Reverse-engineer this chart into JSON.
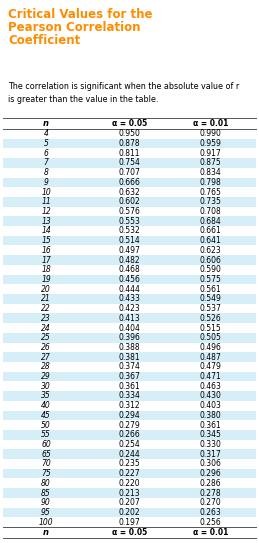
{
  "title_lines": [
    "Critical Values for the",
    "Pearson Correlation",
    "Coefficient"
  ],
  "title_color": "#FF8C00",
  "subtitle": "The correlation is significant when the absolute value of r\nis greater than the value in the table.",
  "col_headers": [
    "n",
    "α = 0.05",
    "α = 0.01"
  ],
  "rows": [
    [
      4,
      0.95,
      0.99
    ],
    [
      5,
      0.878,
      0.959
    ],
    [
      6,
      0.811,
      0.917
    ],
    [
      7,
      0.754,
      0.875
    ],
    [
      8,
      0.707,
      0.834
    ],
    [
      9,
      0.666,
      0.798
    ],
    [
      10,
      0.632,
      0.765
    ],
    [
      11,
      0.602,
      0.735
    ],
    [
      12,
      0.576,
      0.708
    ],
    [
      13,
      0.553,
      0.684
    ],
    [
      14,
      0.532,
      0.661
    ],
    [
      15,
      0.514,
      0.641
    ],
    [
      16,
      0.497,
      0.623
    ],
    [
      17,
      0.482,
      0.606
    ],
    [
      18,
      0.468,
      0.59
    ],
    [
      19,
      0.456,
      0.575
    ],
    [
      20,
      0.444,
      0.561
    ],
    [
      21,
      0.433,
      0.549
    ],
    [
      22,
      0.423,
      0.537
    ],
    [
      23,
      0.413,
      0.526
    ],
    [
      24,
      0.404,
      0.515
    ],
    [
      25,
      0.396,
      0.505
    ],
    [
      26,
      0.388,
      0.496
    ],
    [
      27,
      0.381,
      0.487
    ],
    [
      28,
      0.374,
      0.479
    ],
    [
      29,
      0.367,
      0.471
    ],
    [
      30,
      0.361,
      0.463
    ],
    [
      35,
      0.334,
      0.43
    ],
    [
      40,
      0.312,
      0.403
    ],
    [
      45,
      0.294,
      0.38
    ],
    [
      50,
      0.279,
      0.361
    ],
    [
      55,
      0.266,
      0.345
    ],
    [
      60,
      0.254,
      0.33
    ],
    [
      65,
      0.244,
      0.317
    ],
    [
      70,
      0.235,
      0.306
    ],
    [
      75,
      0.227,
      0.296
    ],
    [
      80,
      0.22,
      0.286
    ],
    [
      85,
      0.213,
      0.278
    ],
    [
      90,
      0.207,
      0.27
    ],
    [
      95,
      0.202,
      0.263
    ],
    [
      100,
      0.197,
      0.256
    ]
  ],
  "stripe_color": "#D6EEF8",
  "header_line_color": "#555555",
  "text_color": "#000000",
  "background_color": "#FFFFFF",
  "fig_width": 2.59,
  "fig_height": 5.43,
  "dpi": 100
}
